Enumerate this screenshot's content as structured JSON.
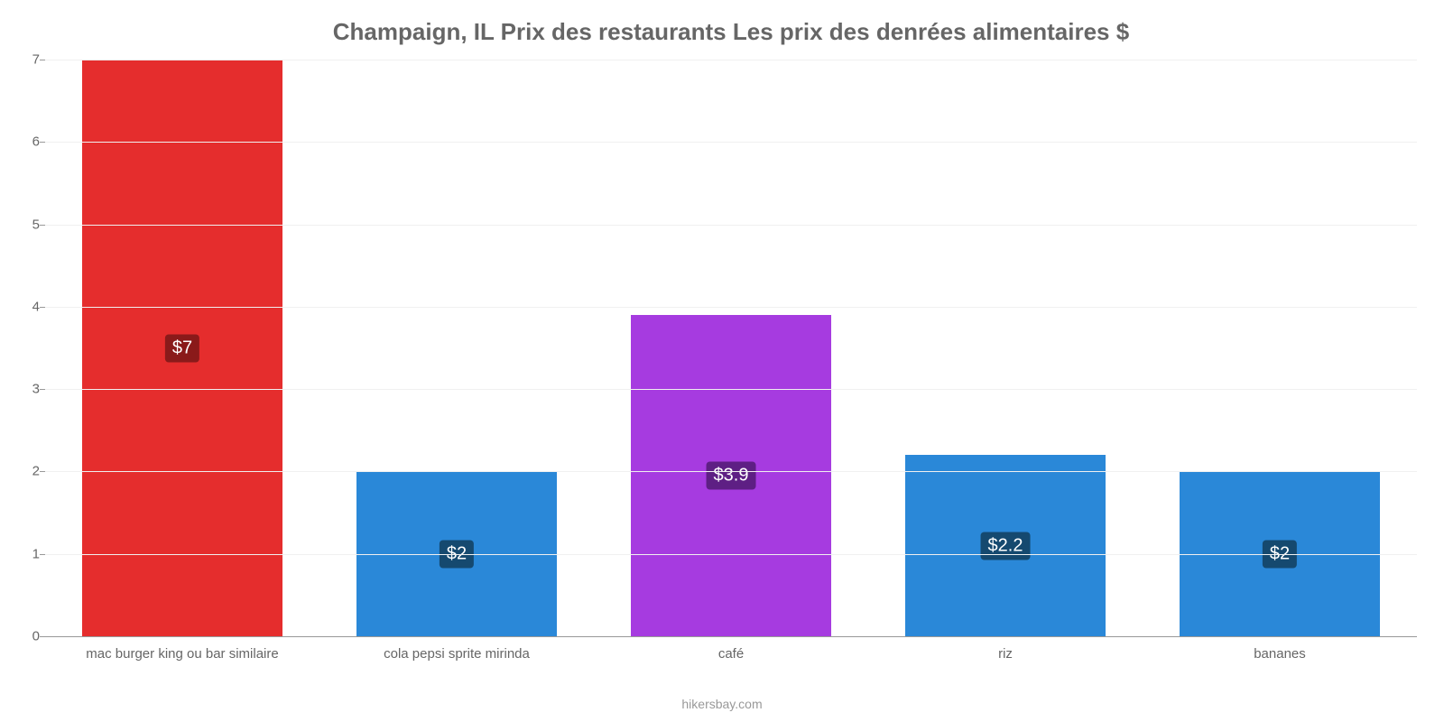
{
  "chart": {
    "type": "bar",
    "title": "Champaign, IL Prix des restaurants Les prix des denrées alimentaires $",
    "title_color": "#666666",
    "title_fontsize": 26,
    "background_color": "#ffffff",
    "grid_color": "#f0f0f0",
    "axis_color": "#999999",
    "tick_color": "#666666",
    "tick_fontsize": 15,
    "ylim": [
      0,
      7
    ],
    "yticks": [
      0,
      1,
      2,
      3,
      4,
      5,
      6,
      7
    ],
    "bar_width_pct": 73,
    "categories": [
      "mac burger king ou bar similaire",
      "cola pepsi sprite mirinda",
      "café",
      "riz",
      "bananes"
    ],
    "values": [
      7,
      2,
      3.9,
      2.2,
      2
    ],
    "value_labels": [
      "$7",
      "$2",
      "$3.9",
      "$2.2",
      "$2"
    ],
    "bar_colors": [
      "#e52d2d",
      "#2a88d8",
      "#a63be0",
      "#2a88d8",
      "#2a88d8"
    ],
    "label_bg_colors": [
      "#8a1a1a",
      "#15496f",
      "#5e1f84",
      "#15496f",
      "#15496f"
    ],
    "label_fontsize": 20,
    "label_text_color": "#ffffff",
    "attribution": "hikersbay.com",
    "attribution_color": "#999999",
    "attribution_fontsize": 14
  }
}
